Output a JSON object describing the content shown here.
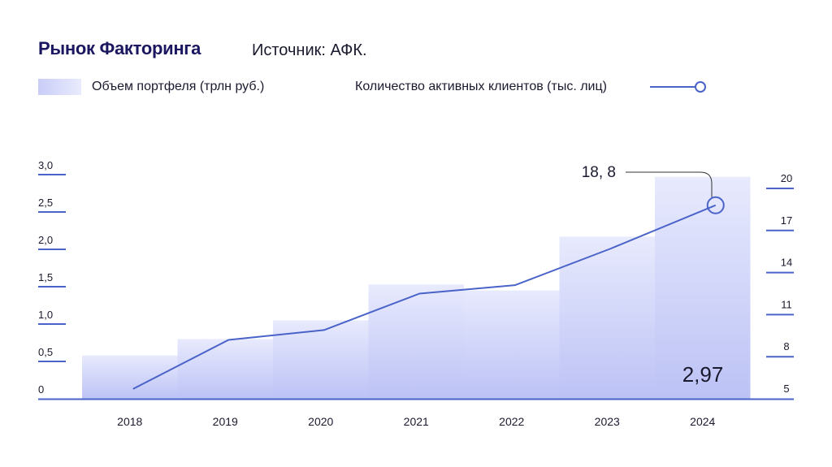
{
  "header": {
    "title": "Рынок Факторинга",
    "source": "Источник: АФК."
  },
  "colors": {
    "line": "#4a63c9",
    "bar_top": "#e6e8fc",
    "bar_bottom": "#b9bff5",
    "axis": "#4a63c9",
    "text": "#1a1a2e"
  },
  "chart_data": {
    "type": "bar+line",
    "categories": [
      "2018",
      "2019",
      "2020",
      "2021",
      "2022",
      "2023",
      "2024"
    ],
    "series": [
      {
        "name": "Объем портфеля (трлн руб.)",
        "type": "bar",
        "axis": "left",
        "values": [
          0.58,
          0.8,
          1.05,
          1.53,
          1.45,
          2.17,
          2.97
        ]
      },
      {
        "name": "Количество активных клиентов (тыс. лиц)",
        "type": "line",
        "axis": "right",
        "values": [
          5.7,
          9.2,
          9.9,
          12.5,
          13.1,
          15.7,
          18.8
        ]
      }
    ],
    "left_axis": {
      "ticks": [
        "0",
        "0,5",
        "1,0",
        "1,5",
        "2,0",
        "2,5",
        "3,0"
      ],
      "range": [
        0,
        3.0
      ]
    },
    "right_axis": {
      "ticks": [
        "5",
        "8",
        "11",
        "14",
        "17",
        "20"
      ],
      "range": [
        5,
        20
      ]
    },
    "annotations": {
      "line_last": "18, 8",
      "bar_last": "2,97"
    },
    "legend": "top"
  }
}
